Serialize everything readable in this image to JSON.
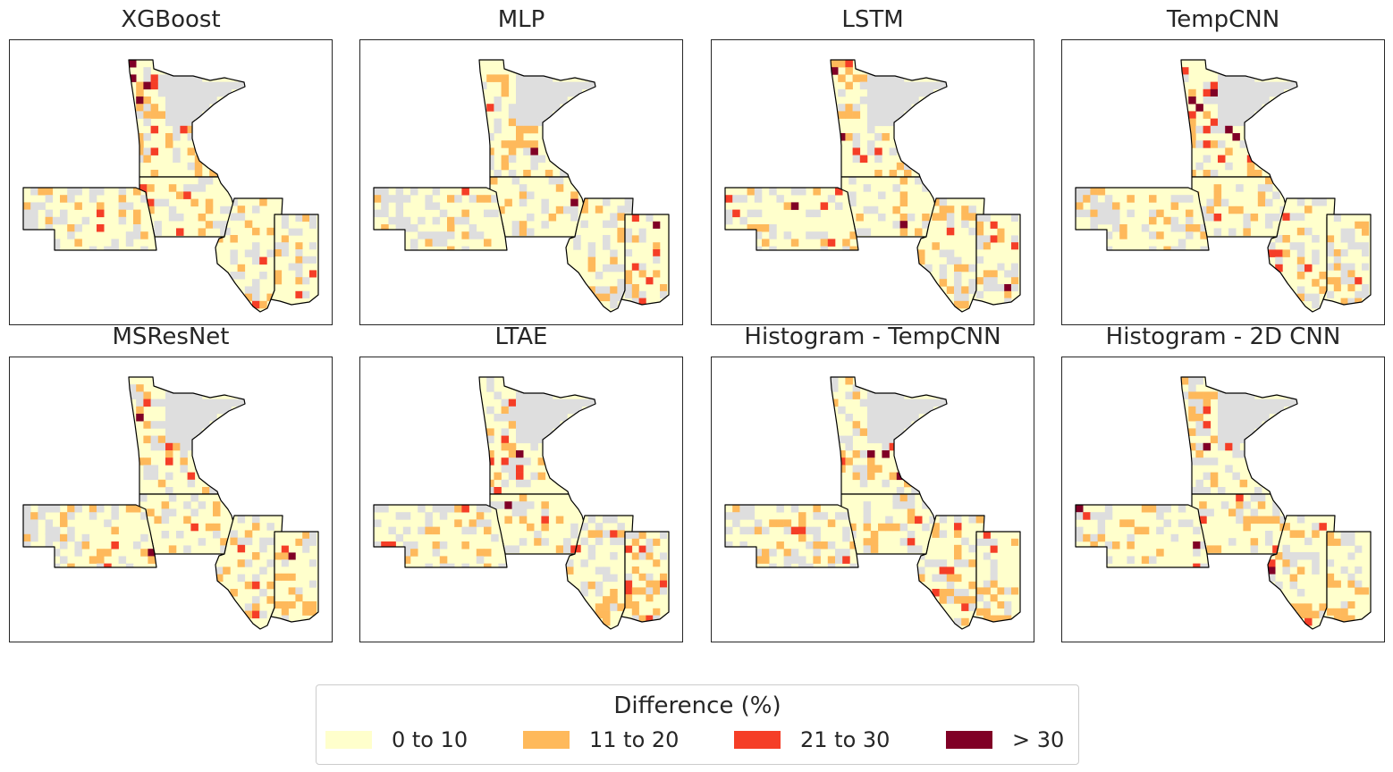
{
  "panels": [
    {
      "title": "XGBoost",
      "pattern": 1
    },
    {
      "title": "MLP",
      "pattern": 2
    },
    {
      "title": "LSTM",
      "pattern": 3
    },
    {
      "title": "TempCNN",
      "pattern": 4
    },
    {
      "title": "MSResNet",
      "pattern": 5
    },
    {
      "title": "LTAE",
      "pattern": 6
    },
    {
      "title": "Histogram - TempCNN",
      "pattern": 7
    },
    {
      "title": "Histogram - 2D CNN",
      "pattern": 8
    }
  ],
  "legend": {
    "title": "Difference (%)",
    "items": [
      {
        "label": "0 to 10",
        "color": "#ffffcc"
      },
      {
        "label": "11 to 20",
        "color": "#feb95b"
      },
      {
        "label": "21 to 30",
        "color": "#f53e27"
      },
      {
        "label": "> 30",
        "color": "#800026"
      }
    ]
  },
  "colors": {
    "no_data": "#dedede",
    "state_border": "#000000",
    "frame": "#262626"
  }
}
